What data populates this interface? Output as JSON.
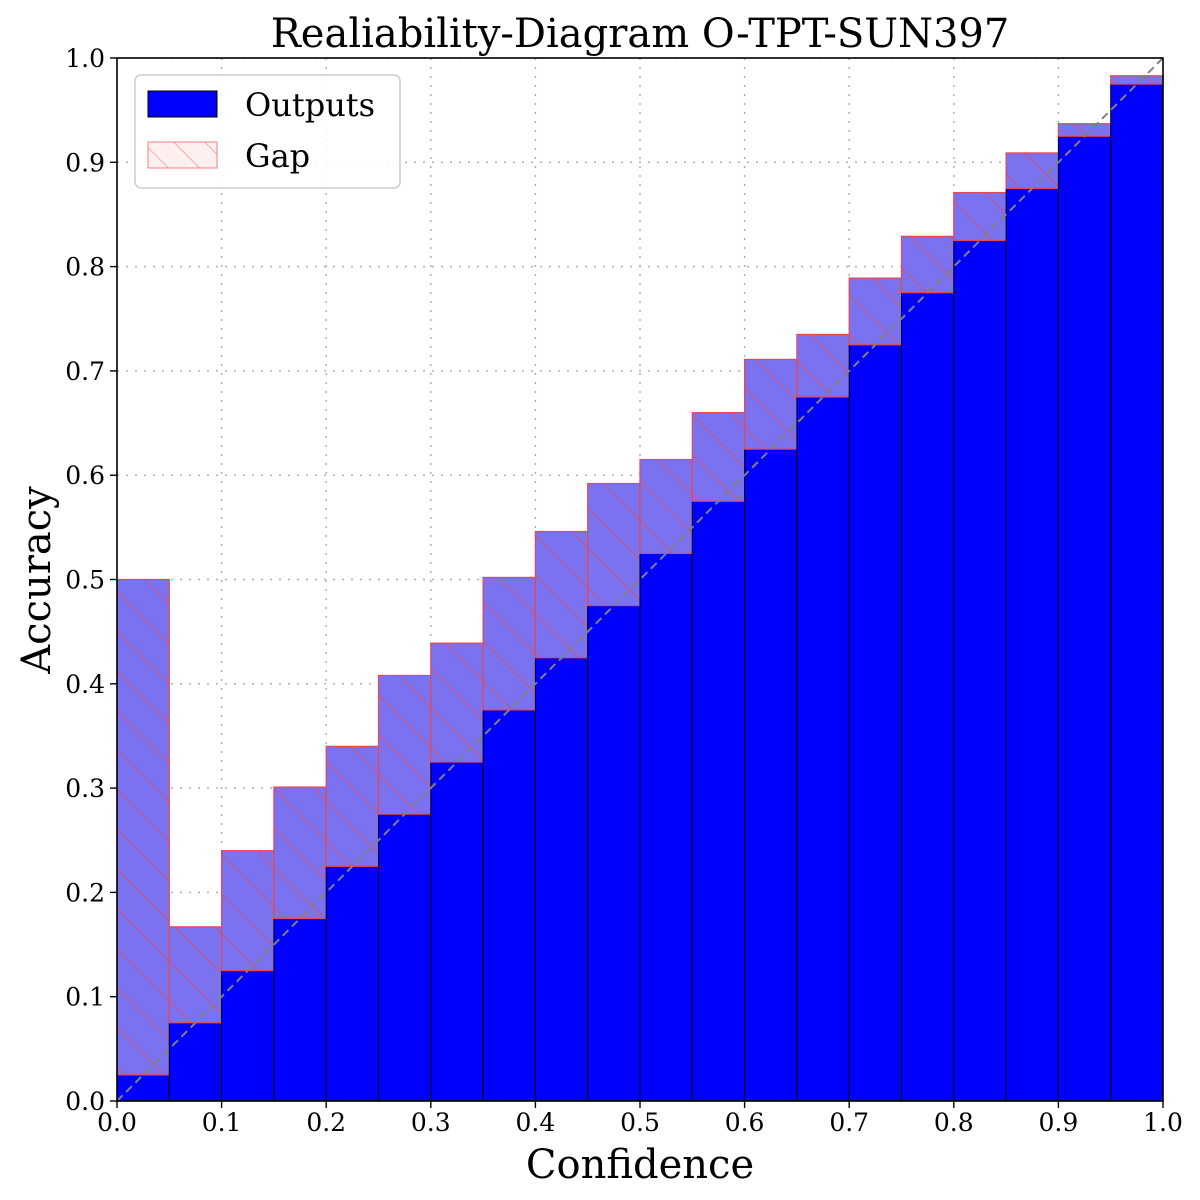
{
  "chart_data": {
    "type": "bar",
    "title": "Realiability-Diagram O-TPT-SUN397",
    "xlabel": "Confidence",
    "ylabel": "Accuracy",
    "xlim": [
      0.0,
      1.0
    ],
    "ylim": [
      0.0,
      1.0
    ],
    "xticks": [
      "0.0",
      "0.1",
      "0.2",
      "0.3",
      "0.4",
      "0.5",
      "0.6",
      "0.7",
      "0.8",
      "0.9",
      "1.0"
    ],
    "yticks": [
      "0.0",
      "0.1",
      "0.2",
      "0.3",
      "0.4",
      "0.5",
      "0.6",
      "0.7",
      "0.8",
      "0.9",
      "1.0"
    ],
    "grid": true,
    "legend_position": "top-left",
    "bin_width": 0.05,
    "bin_starts": [
      0.0,
      0.05,
      0.1,
      0.15,
      0.2,
      0.25,
      0.3,
      0.35,
      0.4,
      0.45,
      0.5,
      0.55,
      0.6,
      0.65,
      0.7,
      0.75,
      0.8,
      0.85,
      0.9,
      0.95
    ],
    "series": [
      {
        "name": "Outputs",
        "color": "#0000ff",
        "values": [
          0.025,
          0.075,
          0.125,
          0.175,
          0.225,
          0.275,
          0.325,
          0.375,
          0.425,
          0.475,
          0.525,
          0.575,
          0.625,
          0.675,
          0.725,
          0.775,
          0.825,
          0.875,
          0.925,
          0.975
        ]
      },
      {
        "name": "Gap",
        "color": "#7b72f0",
        "hatch_color": "#e8474f",
        "values": [
          0.5,
          0.167,
          0.24,
          0.301,
          0.34,
          0.408,
          0.439,
          0.502,
          0.546,
          0.592,
          0.615,
          0.66,
          0.711,
          0.735,
          0.789,
          0.829,
          0.871,
          0.909,
          0.937,
          0.983
        ]
      }
    ],
    "reference_line": "perfect calibration diagonal"
  }
}
